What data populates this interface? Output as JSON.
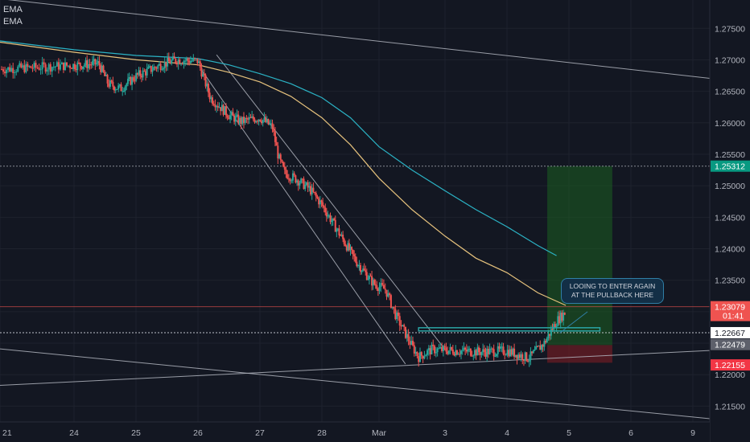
{
  "legend": [
    "EMA",
    "EMA"
  ],
  "annotation": "LOOING TO ENTER AGAIN\nAT THE PULLBACK HERE",
  "colors": {
    "background": "#131722",
    "grid": "#1e222d",
    "up": "#26a69a",
    "down": "#ef5350",
    "ema_fast": "#e6c27d",
    "ema_slow": "#2bb3c5",
    "trendline": "#b2b5be",
    "profit_zone": "#1b5e20",
    "loss_zone": "#6d1d24",
    "level_line": "#2aa3a3"
  },
  "chart_data": {
    "type": "candlestick",
    "ylim": [
      1.2125,
      1.2795
    ],
    "y_ticks": [
      "1.27500",
      "1.27000",
      "1.26500",
      "1.26000",
      "1.25500",
      "1.25000",
      "1.24500",
      "1.24000",
      "1.23500",
      "1.23000",
      "1.22500",
      "1.22000",
      "1.21500"
    ],
    "x_ticks": [
      "21",
      "24",
      "25",
      "26",
      "27",
      "28",
      "Mar",
      "3",
      "4",
      "5",
      "6",
      "9"
    ],
    "price_labels": [
      {
        "text": "1.25312",
        "value": 1.25312,
        "color": "#089981"
      },
      {
        "text": "1.23079",
        "value": 1.23079,
        "color": "#ef5350"
      },
      {
        "text": "01:41",
        "value": 1.2294,
        "color": "#ef5350"
      },
      {
        "text": "1.22667",
        "value": 1.22667,
        "color": "#ffffff"
      },
      {
        "text": "1.22479",
        "value": 1.22479,
        "color": "#5d606b"
      },
      {
        "text": "1.22155",
        "value": 1.22155,
        "color": "#f23645"
      }
    ],
    "price_path": [
      [
        0,
        1.2685
      ],
      [
        1.4,
        1.2694
      ],
      [
        1.55,
        1.2662
      ],
      [
        1.75,
        1.2654
      ],
      [
        2.0,
        1.2674
      ],
      [
        2.4,
        1.2692
      ],
      [
        2.65,
        1.27
      ],
      [
        3.0,
        1.2698
      ],
      [
        3.2,
        1.264
      ],
      [
        3.5,
        1.2612
      ],
      [
        3.7,
        1.2602
      ],
      [
        4.0,
        1.2608
      ],
      [
        4.2,
        1.2593
      ],
      [
        4.3,
        1.2545
      ],
      [
        4.4,
        1.252
      ],
      [
        4.6,
        1.251
      ],
      [
        4.8,
        1.2495
      ],
      [
        5.0,
        1.247
      ],
      [
        5.2,
        1.244
      ],
      [
        5.4,
        1.241
      ],
      [
        5.6,
        1.238
      ],
      [
        5.9,
        1.2345
      ],
      [
        6.1,
        1.2335
      ],
      [
        6.25,
        1.2295
      ],
      [
        6.5,
        1.2245
      ],
      [
        6.6,
        1.2228
      ],
      [
        6.8,
        1.224
      ],
      [
        7.2,
        1.2238
      ],
      [
        7.6,
        1.2236
      ],
      [
        8.0,
        1.2238
      ],
      [
        8.35,
        1.2226
      ],
      [
        8.6,
        1.225
      ],
      [
        8.8,
        1.2285
      ],
      [
        8.95,
        1.23
      ]
    ],
    "ema_fast": [
      [
        0,
        1.2728
      ],
      [
        1,
        1.2712
      ],
      [
        2,
        1.27
      ],
      [
        3,
        1.2692
      ],
      [
        3.5,
        1.268
      ],
      [
        4,
        1.2665
      ],
      [
        4.5,
        1.2642
      ],
      [
        5,
        1.2608
      ],
      [
        5.5,
        1.2565
      ],
      [
        6,
        1.2512
      ],
      [
        6.5,
        1.2462
      ],
      [
        7,
        1.242
      ],
      [
        7.5,
        1.2385
      ],
      [
        8,
        1.2362
      ],
      [
        8.5,
        1.233
      ],
      [
        8.95,
        1.231
      ]
    ],
    "ema_slow": [
      [
        0,
        1.273
      ],
      [
        1,
        1.2716
      ],
      [
        2,
        1.2707
      ],
      [
        3,
        1.2702
      ],
      [
        3.5,
        1.2692
      ],
      [
        4,
        1.2678
      ],
      [
        4.5,
        1.2662
      ],
      [
        5,
        1.264
      ],
      [
        5.5,
        1.2608
      ],
      [
        6,
        1.2562
      ],
      [
        6.5,
        1.2525
      ],
      [
        7,
        1.2492
      ],
      [
        7.5,
        1.2462
      ],
      [
        8,
        1.2435
      ],
      [
        8.5,
        1.2405
      ],
      [
        8.8,
        1.2389
      ]
    ],
    "trendlines": [
      [
        [
          0,
          1.2797
        ],
        [
          11.6,
          1.2667
        ]
      ],
      [
        [
          0,
          1.2241
        ],
        [
          11.6,
          1.2127
        ]
      ],
      [
        [
          0,
          1.2183
        ],
        [
          11.6,
          1.224
        ]
      ],
      [
        [
          3.05,
          1.2685
        ],
        [
          6.4,
          1.2217
        ]
      ],
      [
        [
          3.3,
          1.2708
        ],
        [
          7.0,
          1.224
        ]
      ]
    ],
    "level": {
      "x0": 6.6,
      "x1": 9.5,
      "value": 1.2272
    },
    "position": {
      "x0": 8.65,
      "x1": 9.7,
      "entry": 1.2247,
      "target": 1.25312,
      "stop": 1.2219
    },
    "callout_pointer": [
      [
        9.3,
        1.23
      ],
      [
        8.85,
        1.2266
      ]
    ]
  }
}
